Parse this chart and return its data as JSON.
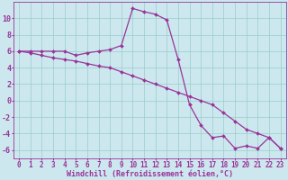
{
  "xlabel": "Windchill (Refroidissement éolien,°C)",
  "background_color": "#cce8ee",
  "line_color": "#993399",
  "grid_color": "#99cccc",
  "xlim": [
    -0.5,
    23.5
  ],
  "ylim": [
    -7,
    12
  ],
  "yticks": [
    -6,
    -4,
    -2,
    0,
    2,
    4,
    6,
    8,
    10
  ],
  "xticks": [
    0,
    1,
    2,
    3,
    4,
    5,
    6,
    7,
    8,
    9,
    10,
    11,
    12,
    13,
    14,
    15,
    16,
    17,
    18,
    19,
    20,
    21,
    22,
    23
  ],
  "series1_x": [
    0,
    1,
    2,
    3,
    4,
    5,
    6,
    7,
    8,
    9,
    10,
    11,
    12,
    13,
    14,
    15,
    16,
    17,
    18,
    19,
    20,
    21,
    22,
    23
  ],
  "series1_y": [
    6,
    6,
    6,
    6,
    6,
    5.5,
    5.8,
    6.0,
    6.2,
    6.7,
    11.2,
    10.8,
    10.5,
    9.8,
    5.0,
    -0.5,
    -3.0,
    -4.5,
    -4.3,
    -5.8,
    -5.5,
    -5.8,
    -4.5,
    -5.8
  ],
  "series2_x": [
    0,
    1,
    2,
    3,
    4,
    5,
    6,
    7,
    8,
    9,
    10,
    11,
    12,
    13,
    14,
    15,
    16,
    17,
    18,
    19,
    20,
    21,
    22,
    23
  ],
  "series2_y": [
    6.0,
    5.8,
    5.5,
    5.2,
    5.0,
    4.8,
    4.5,
    4.2,
    4.0,
    3.5,
    3.0,
    2.5,
    2.0,
    1.5,
    1.0,
    0.5,
    0.0,
    -0.5,
    -1.5,
    -2.5,
    -3.5,
    -4.0,
    -4.5,
    -5.8
  ],
  "tick_fontsize": 5.5,
  "xlabel_fontsize": 6.0
}
